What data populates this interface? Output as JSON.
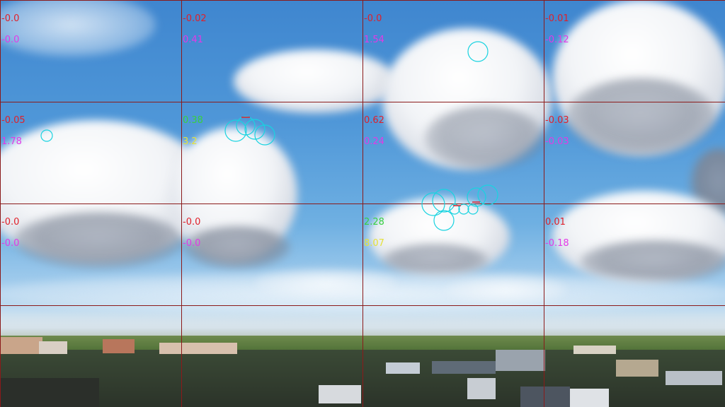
{
  "scene": {
    "description_icon": "sky-clouds-city-aerial"
  },
  "overlay": {
    "colors": {
      "grid": "#8b1a1a",
      "red": "#e0202a",
      "magenta": "#e23ae6",
      "green": "#38d040",
      "yellow": "#e6e23a",
      "circle": "#19d3e0"
    },
    "cells": [
      {
        "row": 0,
        "col": 0,
        "top": "-0.0",
        "bottom": "-0.0",
        "top_color": "red",
        "bottom_color": "magenta"
      },
      {
        "row": 0,
        "col": 1,
        "top": "-0.02",
        "bottom": "0.41",
        "top_color": "red",
        "bottom_color": "magenta"
      },
      {
        "row": 0,
        "col": 2,
        "top": "-0.0",
        "bottom": "1.54",
        "top_color": "red",
        "bottom_color": "magenta"
      },
      {
        "row": 0,
        "col": 3,
        "top": "-0.01",
        "bottom": "-0.12",
        "top_color": "red",
        "bottom_color": "magenta"
      },
      {
        "row": 1,
        "col": 0,
        "top": "-0.05",
        "bottom": "1.78",
        "top_color": "red",
        "bottom_color": "magenta"
      },
      {
        "row": 1,
        "col": 1,
        "top": "0.38",
        "bottom": "3.2",
        "top_color": "green",
        "bottom_color": "yellow"
      },
      {
        "row": 1,
        "col": 2,
        "top": "0.62",
        "bottom": "0.24",
        "top_color": "red",
        "bottom_color": "magenta"
      },
      {
        "row": 1,
        "col": 3,
        "top": "-0.03",
        "bottom": "-0.03",
        "top_color": "red",
        "bottom_color": "magenta"
      },
      {
        "row": 2,
        "col": 0,
        "top": "-0.0",
        "bottom": "-0.0",
        "top_color": "red",
        "bottom_color": "magenta"
      },
      {
        "row": 2,
        "col": 1,
        "top": "-0.0",
        "bottom": "-0.0",
        "top_color": "red",
        "bottom_color": "magenta"
      },
      {
        "row": 2,
        "col": 2,
        "top": "2.28",
        "bottom": "8.07",
        "top_color": "green",
        "bottom_color": "yellow"
      },
      {
        "row": 2,
        "col": 3,
        "top": "0.01",
        "bottom": "-0.18",
        "top_color": "red",
        "bottom_color": "magenta"
      }
    ]
  }
}
